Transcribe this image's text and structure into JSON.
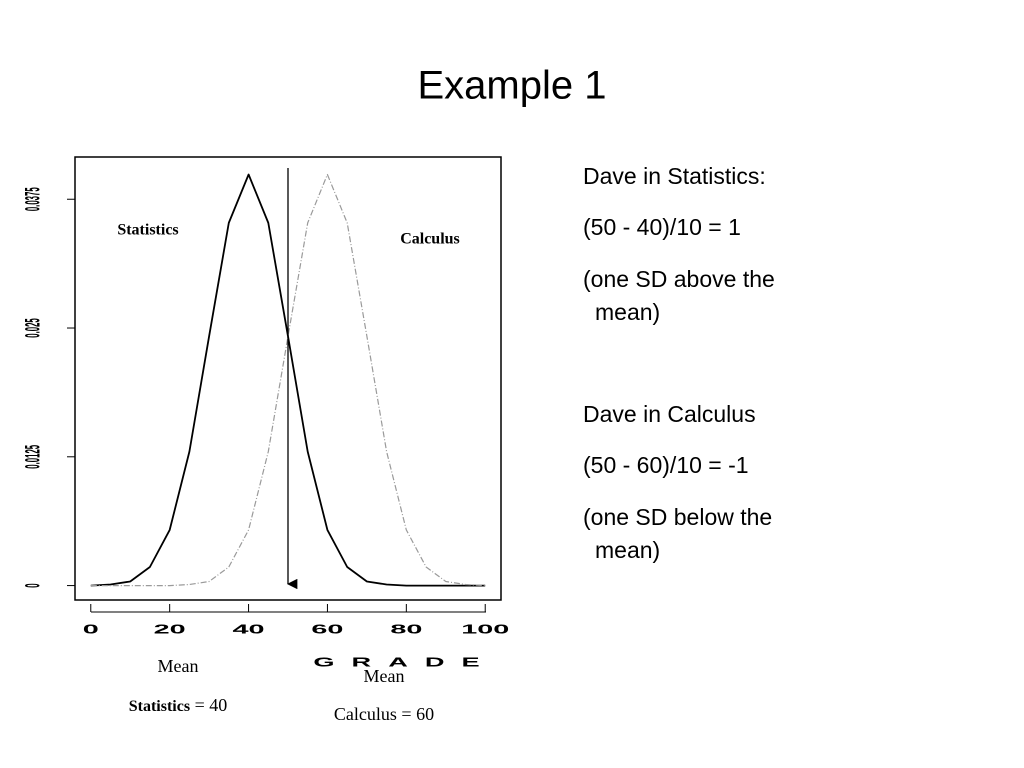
{
  "title": "Example 1",
  "notes": [
    {
      "line": "Dave in Statistics:"
    },
    {
      "line": "(50 - 40)/10 = 1"
    },
    {
      "line": "(one SD above the",
      "cont": "mean)"
    },
    {
      "line": "Dave in Calculus"
    },
    {
      "line": "(50 - 60)/10 = -1"
    },
    {
      "line": "(one SD below the",
      "cont": "mean)"
    }
  ],
  "chart_data": {
    "type": "line",
    "x_label": "GRADE",
    "x": [
      0,
      5,
      10,
      15,
      20,
      25,
      30,
      35,
      40,
      45,
      50,
      55,
      60,
      65,
      70,
      75,
      80,
      85,
      90,
      95,
      100
    ],
    "series": [
      {
        "name": "Statistics",
        "color": "#000000",
        "values": [
          0,
          0.0001,
          0.0004,
          0.0018,
          0.0054,
          0.013,
          0.0242,
          0.0352,
          0.0399,
          0.0352,
          0.0242,
          0.013,
          0.0054,
          0.0018,
          0.0004,
          0.0001,
          0,
          0,
          0,
          0,
          0
        ]
      },
      {
        "name": "Calculus",
        "color": "#9a9a9a",
        "values": [
          0,
          0,
          0,
          0,
          0,
          0.0001,
          0.0004,
          0.0018,
          0.0054,
          0.013,
          0.0242,
          0.0352,
          0.0399,
          0.0352,
          0.0242,
          0.013,
          0.0054,
          0.0018,
          0.0004,
          0.0001,
          0
        ]
      }
    ],
    "xlim": [
      -4,
      104
    ],
    "xticks": [
      0,
      20,
      40,
      60,
      80,
      100
    ],
    "ylim": [
      -0.0014,
      0.0416
    ],
    "yticks": [
      0,
      0.0125,
      0.025,
      0.0375
    ],
    "marker_x": 50,
    "annotations": [
      {
        "text": "Mean"
      },
      {
        "bold": "Statistics",
        "text": " = 40"
      },
      {
        "text": "Mean"
      },
      {
        "text": "Calculus = 60"
      }
    ]
  }
}
